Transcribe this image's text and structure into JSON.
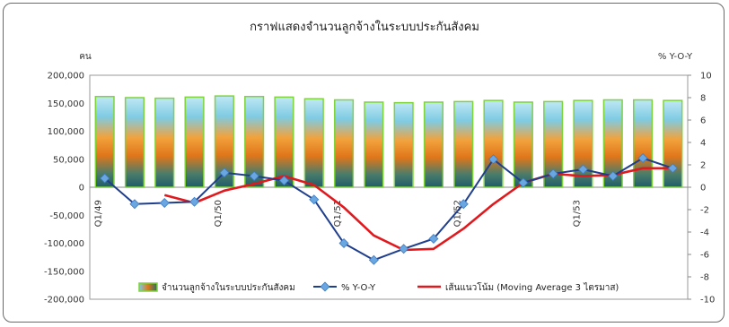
{
  "chart_data": {
    "type": "bar+line",
    "title": "กราฟแสดงจำนวนลูกจ้างในระบบประกันสังคม",
    "y_left_label": "คน",
    "y_right_label": "% Y-O-Y",
    "y_left_ticks": [
      "200,000",
      "150,000",
      "100,000",
      "50,000",
      "0",
      "-50,000",
      "-100,000",
      "-150,000",
      "-200,000"
    ],
    "y_left_range": [
      -200000,
      200000
    ],
    "y_right_ticks": [
      "10",
      "8",
      "6",
      "4",
      "2",
      "0",
      "-2",
      "-4",
      "-6",
      "-8",
      "-10"
    ],
    "y_right_range": [
      -10,
      10
    ],
    "x_tick_labels": [
      {
        "index": 0,
        "label": "Q1/49"
      },
      {
        "index": 4,
        "label": "Q1/50"
      },
      {
        "index": 8,
        "label": "Q1/51"
      },
      {
        "index": 12,
        "label": "Q1/52"
      },
      {
        "index": 16,
        "label": "Q1/53"
      }
    ],
    "n_periods": 20,
    "series": [
      {
        "name": "จำนวนลูกจ้างในระบบประกันสังคม",
        "kind": "bar",
        "axis": "left",
        "values": [
          162000,
          160000,
          159000,
          161000,
          163000,
          162000,
          161000,
          158000,
          156000,
          152000,
          151000,
          152000,
          153000,
          155000,
          152000,
          153000,
          155000,
          156000,
          156000,
          155000
        ]
      },
      {
        "name": "% Y-O-Y",
        "kind": "line",
        "axis": "right",
        "values": [
          0.8,
          -1.5,
          -1.4,
          -1.3,
          1.3,
          1.0,
          0.6,
          -1.1,
          -5.0,
          -6.5,
          -5.5,
          -4.6,
          -1.5,
          2.5,
          0.4,
          1.2,
          1.6,
          1.0,
          2.6,
          1.7
        ]
      },
      {
        "name": "เส้นแนวโน้ม (Moving Average 3 ไตรมาส)",
        "kind": "line",
        "axis": "right",
        "start_index": 2,
        "values": [
          -0.7,
          -1.4,
          -0.3,
          0.3,
          1.0,
          0.2,
          -1.8,
          -4.3,
          -5.6,
          -5.5,
          -3.7,
          -1.5,
          0.4,
          1.2,
          1.0,
          1.1,
          1.7,
          1.7
        ]
      }
    ],
    "legend": [
      {
        "label": "จำนวนลูกจ้างในระบบประกันสังคม"
      },
      {
        "label": "% Y-O-Y"
      },
      {
        "label": "เส้นแนวโน้ม (Moving Average 3 ไตรมาส)"
      }
    ],
    "colors": {
      "bar_top": "#a8dcef",
      "bar_mid": "#f08a1e",
      "bar_bottom": "#2a6f6c",
      "bar_edge": "#7fd43a",
      "yoy": "#1f3e8c",
      "yoy_marker": "#6aa6e0",
      "ma": "#e0191e"
    },
    "grid": false
  }
}
